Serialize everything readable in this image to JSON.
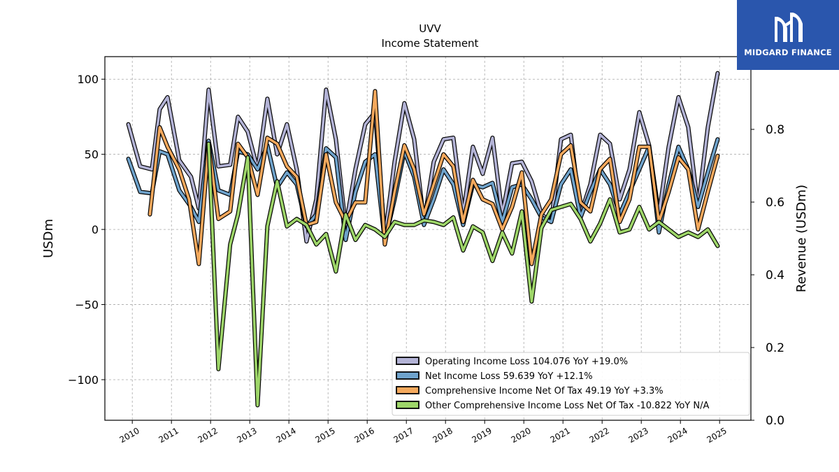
{
  "brand": {
    "name": "MIDGARD FINANCE",
    "logo_icon": "midgard-m-logo-icon",
    "color": "#2a56ad"
  },
  "chart_data": {
    "type": "line",
    "title": "UVV",
    "subtitle": "Income Statement",
    "ylabel": "USDm",
    "y2label": "Revenue (USDm)",
    "ylim": [
      -127,
      115
    ],
    "yticks": [
      100,
      50,
      0,
      -50,
      -100
    ],
    "y2lim": [
      0,
      1
    ],
    "y2ticks": [
      0.0,
      0.2,
      0.4,
      0.6,
      0.8
    ],
    "xlim": [
      2009.3,
      2025.8
    ],
    "xticks": [
      "2010",
      "2011",
      "2012",
      "2013",
      "2014",
      "2015",
      "2016",
      "2017",
      "2018",
      "2019",
      "2020",
      "2021",
      "2022",
      "2023",
      "2024",
      "2025"
    ],
    "grid": true,
    "legend_position": "lower-right",
    "series": [
      {
        "name": "Operating Income Loss  104.076 YoY +19.0%",
        "color": "#b3b3d6",
        "values": [
          [
            2009.9,
            70
          ],
          [
            2010.2,
            42
          ],
          [
            2010.5,
            40
          ],
          [
            2010.7,
            80
          ],
          [
            2010.9,
            88
          ],
          [
            2011.2,
            46
          ],
          [
            2011.5,
            35
          ],
          [
            2011.7,
            14
          ],
          [
            2011.95,
            93
          ],
          [
            2012.2,
            42
          ],
          [
            2012.5,
            43
          ],
          [
            2012.7,
            75
          ],
          [
            2012.95,
            65
          ],
          [
            2013.2,
            40
          ],
          [
            2013.45,
            87
          ],
          [
            2013.7,
            50
          ],
          [
            2013.95,
            70
          ],
          [
            2014.2,
            40
          ],
          [
            2014.45,
            -8
          ],
          [
            2014.7,
            20
          ],
          [
            2014.95,
            93
          ],
          [
            2015.2,
            60
          ],
          [
            2015.45,
            2
          ],
          [
            2015.7,
            40
          ],
          [
            2015.95,
            70
          ],
          [
            2016.2,
            78
          ],
          [
            2016.45,
            -5
          ],
          [
            2016.7,
            45
          ],
          [
            2016.95,
            84
          ],
          [
            2017.2,
            60
          ],
          [
            2017.45,
            5
          ],
          [
            2017.7,
            45
          ],
          [
            2017.95,
            60
          ],
          [
            2018.2,
            61
          ],
          [
            2018.45,
            10
          ],
          [
            2018.7,
            55
          ],
          [
            2018.95,
            37
          ],
          [
            2019.2,
            61
          ],
          [
            2019.45,
            10
          ],
          [
            2019.7,
            44
          ],
          [
            2019.95,
            45
          ],
          [
            2020.2,
            32
          ],
          [
            2020.45,
            10
          ],
          [
            2020.7,
            5
          ],
          [
            2020.95,
            60
          ],
          [
            2021.2,
            63
          ],
          [
            2021.45,
            10
          ],
          [
            2021.7,
            30
          ],
          [
            2021.95,
            63
          ],
          [
            2022.2,
            57
          ],
          [
            2022.45,
            20
          ],
          [
            2022.7,
            40
          ],
          [
            2022.95,
            78
          ],
          [
            2023.2,
            56
          ],
          [
            2023.45,
            10
          ],
          [
            2023.7,
            55
          ],
          [
            2023.95,
            88
          ],
          [
            2024.2,
            68
          ],
          [
            2024.45,
            15
          ],
          [
            2024.7,
            68
          ],
          [
            2024.95,
            104
          ]
        ]
      },
      {
        "name": "Net Income Loss  59.639 YoY +12.1%",
        "color": "#6fa3cc",
        "values": [
          [
            2009.9,
            47
          ],
          [
            2010.2,
            25
          ],
          [
            2010.5,
            24
          ],
          [
            2010.7,
            52
          ],
          [
            2010.9,
            50
          ],
          [
            2011.2,
            26
          ],
          [
            2011.5,
            15
          ],
          [
            2011.7,
            5
          ],
          [
            2011.95,
            59
          ],
          [
            2012.2,
            26
          ],
          [
            2012.5,
            23
          ],
          [
            2012.7,
            52
          ],
          [
            2012.95,
            50
          ],
          [
            2013.2,
            40
          ],
          [
            2013.45,
            56
          ],
          [
            2013.7,
            28
          ],
          [
            2013.95,
            38
          ],
          [
            2014.2,
            30
          ],
          [
            2014.45,
            2
          ],
          [
            2014.7,
            10
          ],
          [
            2014.95,
            54
          ],
          [
            2015.2,
            48
          ],
          [
            2015.45,
            -7
          ],
          [
            2015.7,
            25
          ],
          [
            2015.95,
            45
          ],
          [
            2016.2,
            50
          ],
          [
            2016.45,
            -8
          ],
          [
            2016.7,
            20
          ],
          [
            2016.95,
            52
          ],
          [
            2017.2,
            35
          ],
          [
            2017.45,
            3
          ],
          [
            2017.7,
            20
          ],
          [
            2017.95,
            40
          ],
          [
            2018.2,
            30
          ],
          [
            2018.45,
            3
          ],
          [
            2018.7,
            30
          ],
          [
            2018.95,
            28
          ],
          [
            2019.2,
            31
          ],
          [
            2019.45,
            5
          ],
          [
            2019.7,
            28
          ],
          [
            2019.95,
            30
          ],
          [
            2020.2,
            20
          ],
          [
            2020.45,
            8
          ],
          [
            2020.7,
            5
          ],
          [
            2020.95,
            30
          ],
          [
            2021.2,
            40
          ],
          [
            2021.45,
            8
          ],
          [
            2021.7,
            25
          ],
          [
            2021.95,
            40
          ],
          [
            2022.2,
            30
          ],
          [
            2022.45,
            10
          ],
          [
            2022.7,
            25
          ],
          [
            2022.95,
            40
          ],
          [
            2023.2,
            55
          ],
          [
            2023.45,
            -2
          ],
          [
            2023.7,
            30
          ],
          [
            2023.95,
            55
          ],
          [
            2024.2,
            40
          ],
          [
            2024.45,
            15
          ],
          [
            2024.7,
            38
          ],
          [
            2024.95,
            60
          ]
        ]
      },
      {
        "name": "Comprehensive Income Net Of Tax  49.19 YoY +3.3%",
        "color": "#f5a95d",
        "values": [
          [
            2010.45,
            10
          ],
          [
            2010.7,
            68
          ],
          [
            2010.9,
            55
          ],
          [
            2011.2,
            40
          ],
          [
            2011.45,
            20
          ],
          [
            2011.7,
            -23
          ],
          [
            2011.95,
            57
          ],
          [
            2012.2,
            7
          ],
          [
            2012.5,
            12
          ],
          [
            2012.7,
            57
          ],
          [
            2012.95,
            48
          ],
          [
            2013.2,
            23
          ],
          [
            2013.45,
            61
          ],
          [
            2013.7,
            57
          ],
          [
            2013.95,
            42
          ],
          [
            2014.2,
            35
          ],
          [
            2014.45,
            3
          ],
          [
            2014.7,
            5
          ],
          [
            2014.95,
            50
          ],
          [
            2015.2,
            18
          ],
          [
            2015.45,
            5
          ],
          [
            2015.7,
            18
          ],
          [
            2015.95,
            18
          ],
          [
            2016.2,
            92
          ],
          [
            2016.45,
            -10
          ],
          [
            2016.7,
            25
          ],
          [
            2016.95,
            56
          ],
          [
            2017.2,
            40
          ],
          [
            2017.45,
            10
          ],
          [
            2017.7,
            30
          ],
          [
            2017.95,
            50
          ],
          [
            2018.2,
            42
          ],
          [
            2018.45,
            5
          ],
          [
            2018.7,
            33
          ],
          [
            2018.95,
            20
          ],
          [
            2019.2,
            17
          ],
          [
            2019.45,
            0
          ],
          [
            2019.7,
            15
          ],
          [
            2019.95,
            38
          ],
          [
            2020.2,
            -23
          ],
          [
            2020.45,
            10
          ],
          [
            2020.7,
            20
          ],
          [
            2020.95,
            50
          ],
          [
            2021.2,
            56
          ],
          [
            2021.45,
            18
          ],
          [
            2021.7,
            12
          ],
          [
            2021.95,
            40
          ],
          [
            2022.2,
            47
          ],
          [
            2022.45,
            5
          ],
          [
            2022.7,
            20
          ],
          [
            2022.95,
            55
          ],
          [
            2023.2,
            55
          ],
          [
            2023.45,
            5
          ],
          [
            2023.7,
            25
          ],
          [
            2023.95,
            48
          ],
          [
            2024.2,
            40
          ],
          [
            2024.45,
            0
          ],
          [
            2024.7,
            25
          ],
          [
            2024.95,
            49
          ]
        ]
      },
      {
        "name": "Other Comprehensive Income Loss Net Of Tax  -10.822 YoY N/A",
        "color": "#9ed669",
        "values": [
          [
            2011.95,
            57
          ],
          [
            2012.2,
            -93
          ],
          [
            2012.5,
            -10
          ],
          [
            2012.7,
            10
          ],
          [
            2012.95,
            48
          ],
          [
            2013.2,
            -117
          ],
          [
            2013.45,
            2
          ],
          [
            2013.7,
            32
          ],
          [
            2013.95,
            2
          ],
          [
            2014.2,
            7
          ],
          [
            2014.45,
            3
          ],
          [
            2014.7,
            -10
          ],
          [
            2014.95,
            -3
          ],
          [
            2015.2,
            -28
          ],
          [
            2015.45,
            10
          ],
          [
            2015.7,
            -7
          ],
          [
            2015.95,
            3
          ],
          [
            2016.2,
            0
          ],
          [
            2016.45,
            -5
          ],
          [
            2016.7,
            5
          ],
          [
            2016.95,
            3
          ],
          [
            2017.2,
            3
          ],
          [
            2017.45,
            6
          ],
          [
            2017.7,
            5
          ],
          [
            2017.95,
            3
          ],
          [
            2018.2,
            8
          ],
          [
            2018.45,
            -14
          ],
          [
            2018.7,
            2
          ],
          [
            2018.95,
            -2
          ],
          [
            2019.2,
            -21
          ],
          [
            2019.45,
            -2
          ],
          [
            2019.7,
            -16
          ],
          [
            2019.95,
            12
          ],
          [
            2020.2,
            -48
          ],
          [
            2020.45,
            1
          ],
          [
            2020.7,
            13
          ],
          [
            2020.95,
            15
          ],
          [
            2021.2,
            17
          ],
          [
            2021.45,
            7
          ],
          [
            2021.7,
            -8
          ],
          [
            2021.95,
            4
          ],
          [
            2022.2,
            20
          ],
          [
            2022.45,
            -2
          ],
          [
            2022.7,
            0
          ],
          [
            2022.95,
            15
          ],
          [
            2023.2,
            0
          ],
          [
            2023.45,
            5
          ],
          [
            2023.7,
            0
          ],
          [
            2023.95,
            -5
          ],
          [
            2024.2,
            -2
          ],
          [
            2024.45,
            -5
          ],
          [
            2024.7,
            0
          ],
          [
            2024.95,
            -11
          ]
        ]
      }
    ]
  }
}
